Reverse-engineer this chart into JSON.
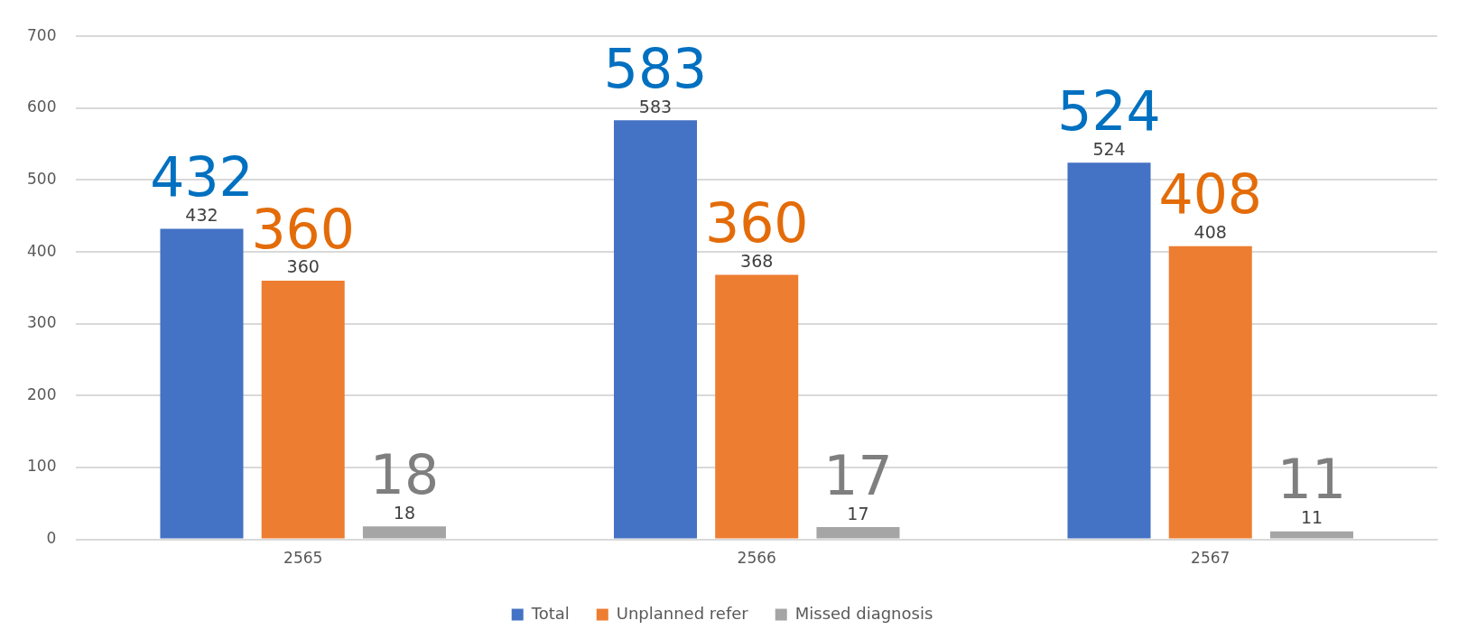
{
  "chart_data": {
    "type": "bar",
    "categories": [
      "2565",
      "2566",
      "2567"
    ],
    "series": [
      {
        "name": "Total",
        "color": "#4472c4",
        "values": [
          432,
          583,
          524
        ]
      },
      {
        "name": "Unplanned refer",
        "color": "#ed7d31",
        "values": [
          360,
          368,
          408
        ]
      },
      {
        "name": "Missed diagnosis",
        "color": "#a5a5a5",
        "values": [
          18,
          17,
          11
        ]
      }
    ],
    "annotations": [
      "432",
      "360",
      "18",
      "583",
      "360",
      "17",
      "524",
      "408",
      "11"
    ],
    "ylim": [
      0,
      700
    ],
    "yticks": [
      0,
      100,
      200,
      300,
      400,
      500,
      600,
      700
    ],
    "grid": "y",
    "legend": "bottom",
    "data_labels": true
  }
}
